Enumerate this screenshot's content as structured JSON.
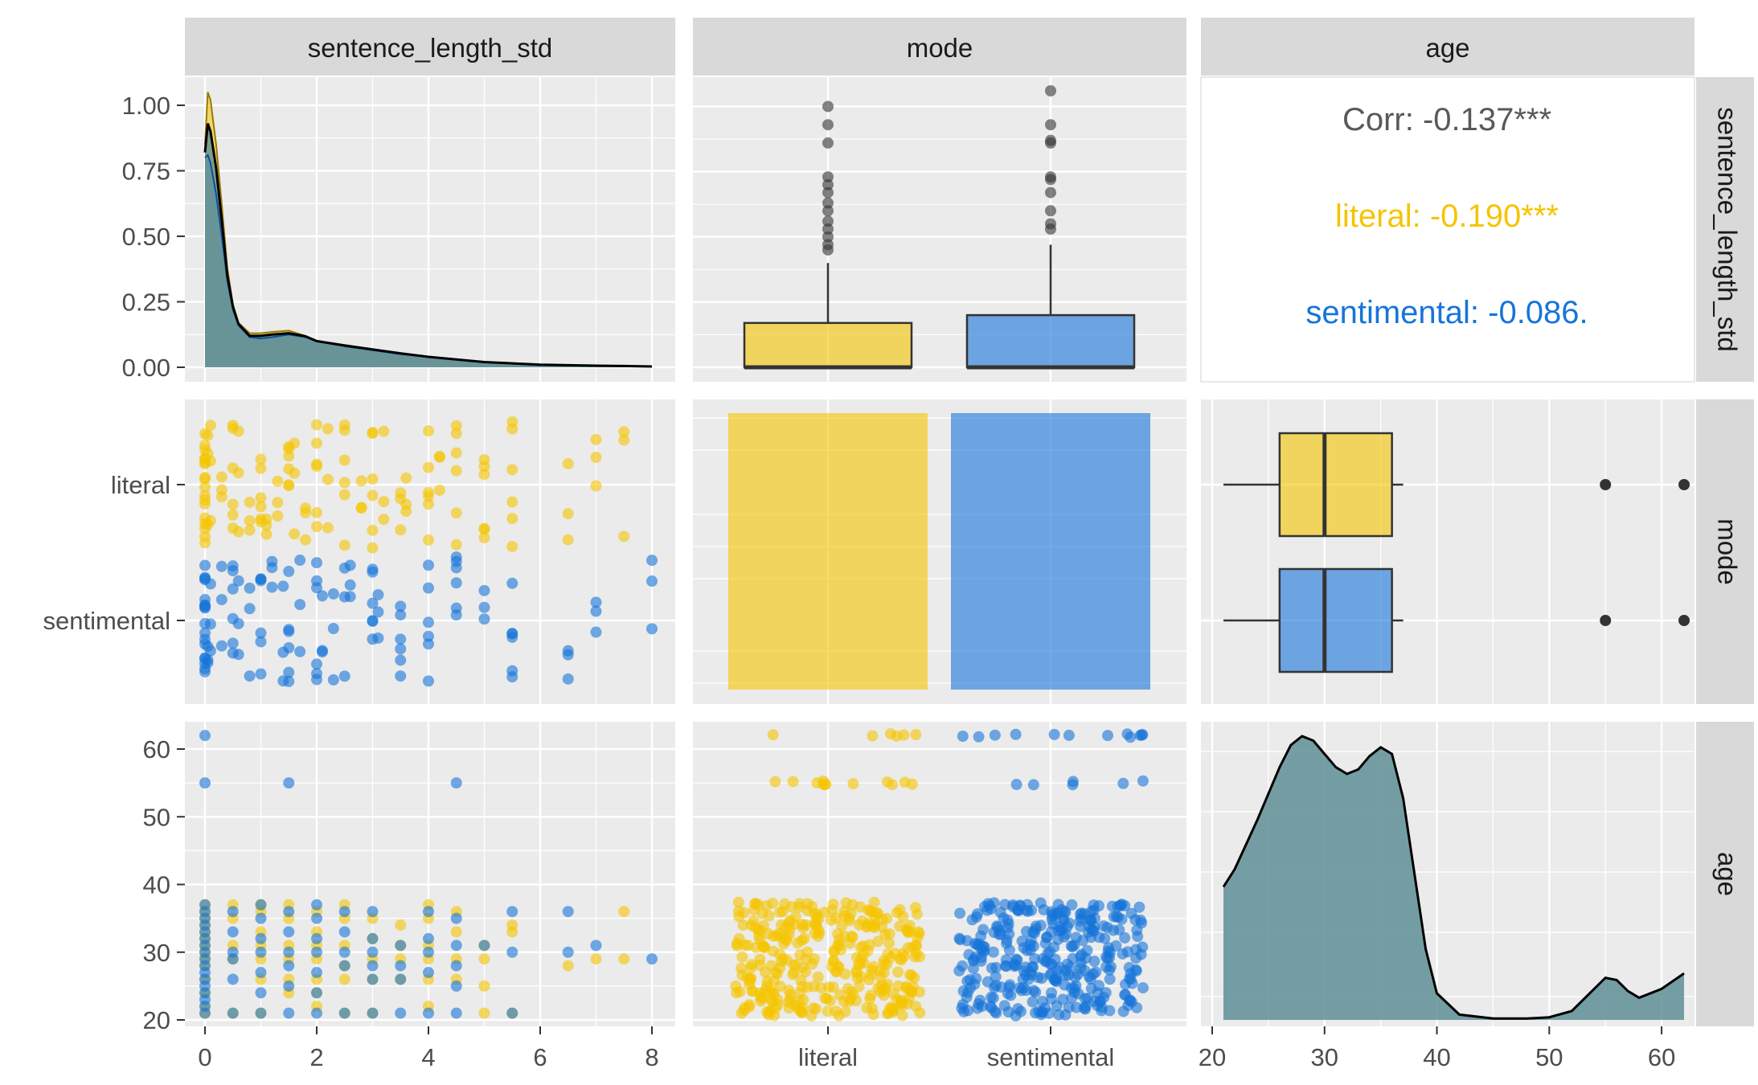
{
  "chart_data": {
    "type": "scatter-matrix",
    "variables": [
      "sentence_length_std",
      "mode",
      "age"
    ],
    "colors": {
      "literal": "#f5c400",
      "sentimental": "#1675d9",
      "combined": "#5f8f96",
      "panel": "#ebebeb",
      "strip": "#d9d9d9",
      "outlier": "#333333"
    },
    "axes": {
      "sentence_length_std": {
        "ticks": [
          "0",
          "2",
          "4",
          "6",
          "8"
        ],
        "density_ticks": [
          "0.00",
          "0.25",
          "0.50",
          "0.75",
          "1.00"
        ]
      },
      "mode": {
        "ticks": [
          "literal",
          "sentimental"
        ]
      },
      "age": {
        "ticks": [
          "20",
          "30",
          "40",
          "50",
          "60"
        ]
      }
    },
    "correlation": {
      "overall": "Corr: -0.137***",
      "literal": "literal: -0.190***",
      "sentimental": "sentimental: -0.086."
    },
    "density_sentence_length_std": {
      "x": [
        0,
        0.05,
        0.1,
        0.2,
        0.3,
        0.4,
        0.5,
        0.6,
        0.8,
        1.0,
        1.2,
        1.5,
        1.8,
        2.0,
        2.5,
        3.0,
        3.5,
        4.0,
        4.5,
        5.0,
        5.5,
        6.0,
        6.5,
        7.0,
        7.5,
        8.0
      ],
      "literal": [
        0.85,
        1.05,
        1.02,
        0.85,
        0.62,
        0.38,
        0.24,
        0.17,
        0.13,
        0.13,
        0.135,
        0.14,
        0.12,
        0.1,
        0.085,
        0.07,
        0.055,
        0.04,
        0.03,
        0.02,
        0.015,
        0.01,
        0.008,
        0.006,
        0.005,
        0.003
      ],
      "sentimental": [
        0.8,
        0.81,
        0.78,
        0.66,
        0.5,
        0.33,
        0.22,
        0.16,
        0.115,
        0.11,
        0.115,
        0.125,
        0.115,
        0.1,
        0.08,
        0.065,
        0.05,
        0.04,
        0.03,
        0.02,
        0.015,
        0.01,
        0.008,
        0.006,
        0.005,
        0.003
      ],
      "combined": [
        0.82,
        0.93,
        0.9,
        0.76,
        0.56,
        0.35,
        0.23,
        0.165,
        0.12,
        0.12,
        0.125,
        0.13,
        0.118,
        0.1,
        0.083,
        0.068,
        0.053,
        0.04,
        0.03,
        0.02,
        0.015,
        0.01,
        0.008,
        0.006,
        0.005,
        0.003
      ]
    },
    "boxplot_sentence_length_std_by_mode": [
      {
        "group": "literal",
        "q1": 0,
        "median": 0,
        "q3": 0.17,
        "whisker_low": 0,
        "whisker_high": 0.4,
        "outliers": [
          0.45,
          0.47,
          0.5,
          0.53,
          0.56,
          0.6,
          0.63,
          0.67,
          0.7,
          0.73,
          0.86,
          0.93,
          1.0
        ]
      },
      {
        "group": "sentimental",
        "q1": 0,
        "median": 0,
        "q3": 0.2,
        "whisker_low": 0,
        "whisker_high": 0.47,
        "outliers": [
          0.53,
          0.55,
          0.6,
          0.67,
          0.72,
          0.73,
          0.86,
          0.87,
          0.93,
          1.06
        ]
      }
    ],
    "bar_mode_counts": [
      {
        "group": "literal",
        "relative": 1.0
      },
      {
        "group": "sentimental",
        "relative": 1.0
      }
    ],
    "boxplot_age_by_mode": [
      {
        "group": "literal",
        "q1": 26,
        "median": 30,
        "q3": 36,
        "whisker_low": 21,
        "whisker_high": 37,
        "outliers": [
          55,
          62
        ]
      },
      {
        "group": "sentimental",
        "q1": 26,
        "median": 30,
        "q3": 36,
        "whisker_low": 21,
        "whisker_high": 37,
        "outliers": [
          55,
          62
        ]
      }
    ],
    "density_age": {
      "x": [
        21,
        22,
        24,
        26,
        27,
        28,
        29,
        30,
        31,
        32,
        33,
        34,
        35,
        36,
        37,
        38,
        39,
        40,
        42,
        45,
        48,
        50,
        52,
        54,
        55,
        56,
        57,
        58,
        60,
        62
      ],
      "y": [
        0.3,
        0.34,
        0.45,
        0.57,
        0.62,
        0.64,
        0.63,
        0.6,
        0.57,
        0.555,
        0.565,
        0.595,
        0.615,
        0.6,
        0.5,
        0.33,
        0.16,
        0.06,
        0.012,
        0.003,
        0.003,
        0.006,
        0.02,
        0.07,
        0.095,
        0.09,
        0.065,
        0.05,
        0.07,
        0.105
      ]
    },
    "scatter_age_vs_sentence_length_std": {
      "literal": [
        [
          0,
          21
        ],
        [
          0,
          22
        ],
        [
          0,
          24
        ],
        [
          0,
          26
        ],
        [
          0,
          28
        ],
        [
          0,
          29
        ],
        [
          0,
          30
        ],
        [
          0,
          31
        ],
        [
          0,
          32
        ],
        [
          0,
          33
        ],
        [
          0,
          34
        ],
        [
          0,
          35
        ],
        [
          0,
          36
        ],
        [
          0,
          37
        ],
        [
          0.5,
          21
        ],
        [
          0.5,
          29
        ],
        [
          0.5,
          31
        ],
        [
          0.5,
          35
        ],
        [
          0.5,
          37
        ],
        [
          1,
          21
        ],
        [
          1,
          26
        ],
        [
          1,
          29
        ],
        [
          1,
          31
        ],
        [
          1,
          33
        ],
        [
          1,
          36
        ],
        [
          1,
          37
        ],
        [
          1.5,
          24
        ],
        [
          1.5,
          26
        ],
        [
          1.5,
          29
        ],
        [
          1.5,
          31
        ],
        [
          1.5,
          35
        ],
        [
          1.5,
          37
        ],
        [
          2,
          22
        ],
        [
          2,
          24
        ],
        [
          2,
          26
        ],
        [
          2,
          29
        ],
        [
          2,
          31
        ],
        [
          2,
          33
        ],
        [
          2,
          36
        ],
        [
          2.5,
          21
        ],
        [
          2.5,
          26
        ],
        [
          2.5,
          28
        ],
        [
          2.5,
          31
        ],
        [
          2.5,
          35
        ],
        [
          2.5,
          37
        ],
        [
          3,
          21
        ],
        [
          3,
          26
        ],
        [
          3,
          29
        ],
        [
          3,
          32
        ],
        [
          3,
          35
        ],
        [
          3.5,
          26
        ],
        [
          3.5,
          29
        ],
        [
          3.5,
          31
        ],
        [
          3.5,
          34
        ],
        [
          4,
          22
        ],
        [
          4,
          26
        ],
        [
          4,
          29
        ],
        [
          4,
          31
        ],
        [
          4,
          35
        ],
        [
          4,
          37
        ],
        [
          4.5,
          26
        ],
        [
          4.5,
          29
        ],
        [
          4.5,
          33
        ],
        [
          4.5,
          36
        ],
        [
          5,
          21
        ],
        [
          5,
          25
        ],
        [
          5,
          29
        ],
        [
          5,
          31
        ],
        [
          5.5,
          21
        ],
        [
          5.5,
          33
        ],
        [
          5.5,
          34
        ],
        [
          6.5,
          28
        ],
        [
          7,
          29
        ],
        [
          7.5,
          29
        ],
        [
          7.5,
          36
        ]
      ],
      "sentimental": [
        [
          0,
          21
        ],
        [
          0,
          22
        ],
        [
          0,
          23
        ],
        [
          0,
          24
        ],
        [
          0,
          25
        ],
        [
          0,
          26
        ],
        [
          0,
          27
        ],
        [
          0,
          28
        ],
        [
          0,
          29
        ],
        [
          0,
          30
        ],
        [
          0,
          31
        ],
        [
          0,
          32
        ],
        [
          0,
          33
        ],
        [
          0,
          34
        ],
        [
          0,
          35
        ],
        [
          0,
          36
        ],
        [
          0,
          37
        ],
        [
          0,
          55
        ],
        [
          0,
          62
        ],
        [
          0.5,
          21
        ],
        [
          0.5,
          26
        ],
        [
          0.5,
          29
        ],
        [
          0.5,
          30
        ],
        [
          0.5,
          33
        ],
        [
          0.5,
          36
        ],
        [
          1,
          21
        ],
        [
          1,
          24
        ],
        [
          1,
          27
        ],
        [
          1,
          30
        ],
        [
          1,
          32
        ],
        [
          1,
          35
        ],
        [
          1,
          37
        ],
        [
          1.5,
          21
        ],
        [
          1.5,
          25
        ],
        [
          1.5,
          28
        ],
        [
          1.5,
          30
        ],
        [
          1.5,
          33
        ],
        [
          1.5,
          36
        ],
        [
          1.5,
          55
        ],
        [
          2,
          21
        ],
        [
          2,
          24
        ],
        [
          2,
          27
        ],
        [
          2,
          30
        ],
        [
          2,
          32
        ],
        [
          2,
          35
        ],
        [
          2,
          37
        ],
        [
          2.5,
          21
        ],
        [
          2.5,
          28
        ],
        [
          2.5,
          30
        ],
        [
          2.5,
          33
        ],
        [
          2.5,
          36
        ],
        [
          3,
          21
        ],
        [
          3,
          26
        ],
        [
          3,
          28
        ],
        [
          3,
          30
        ],
        [
          3,
          32
        ],
        [
          3,
          36
        ],
        [
          3.5,
          21
        ],
        [
          3.5,
          26
        ],
        [
          3.5,
          28
        ],
        [
          3.5,
          31
        ],
        [
          4,
          21
        ],
        [
          4,
          27
        ],
        [
          4,
          30
        ],
        [
          4,
          32
        ],
        [
          4,
          36
        ],
        [
          4.5,
          21
        ],
        [
          4.5,
          25
        ],
        [
          4.5,
          28
        ],
        [
          4.5,
          31
        ],
        [
          4.5,
          35
        ],
        [
          4.5,
          55
        ],
        [
          5,
          31
        ],
        [
          5.5,
          21
        ],
        [
          5.5,
          30
        ],
        [
          5.5,
          36
        ],
        [
          6.5,
          30
        ],
        [
          6.5,
          36
        ],
        [
          7,
          31
        ],
        [
          8,
          29
        ]
      ]
    }
  }
}
